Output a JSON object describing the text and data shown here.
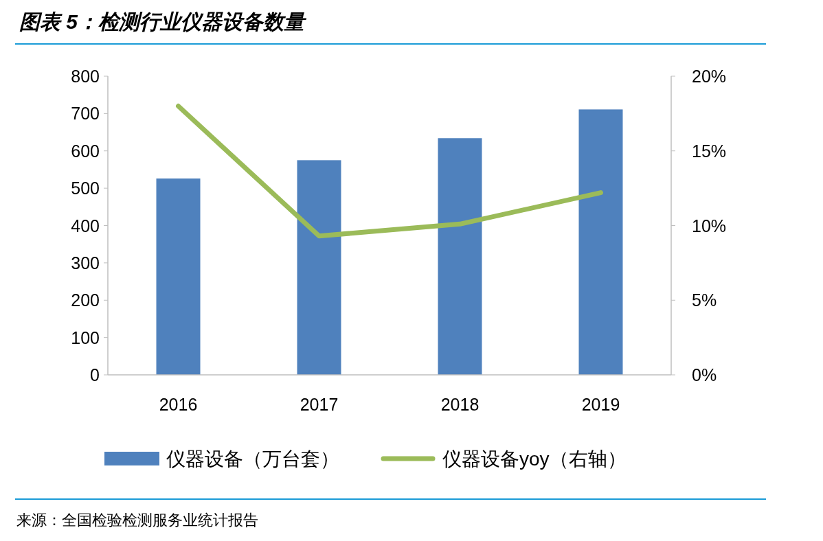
{
  "chart_data": {
    "type": "bar",
    "title": "图表 5：检测行业仪器设备数量",
    "categories": [
      "2016",
      "2017",
      "2018",
      "2019"
    ],
    "series": [
      {
        "name": "仪器设备（万台套）",
        "color": "#4f81bd",
        "values": [
          526,
          575,
          634,
          711
        ]
      },
      {
        "name": "仪器设备yoy（右轴）",
        "type": "line",
        "axis": "y2",
        "color": "#9bbb59",
        "values": [
          18.0,
          9.3,
          10.1,
          12.2
        ]
      }
    ],
    "ylim": [
      0,
      800
    ],
    "yticks": [
      0,
      100,
      200,
      300,
      400,
      500,
      600,
      700,
      800
    ],
    "y2lim": [
      0,
      20
    ],
    "y2ticks": [
      {
        "value": 0,
        "label": "0%"
      },
      {
        "value": 5,
        "label": "5%"
      },
      {
        "value": 10,
        "label": "10%"
      },
      {
        "value": 15,
        "label": "15%"
      },
      {
        "value": 20,
        "label": "20%"
      }
    ],
    "legend": "bottom",
    "grid": false,
    "marker": "none",
    "annotations": [
      "来源：全国检验检测服务业统计报告"
    ]
  }
}
